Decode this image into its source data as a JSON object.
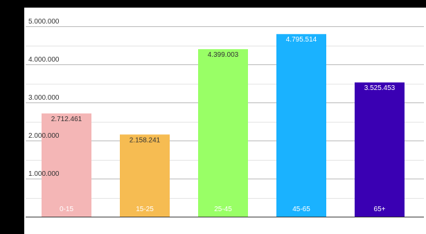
{
  "chart_data": {
    "type": "bar",
    "categories": [
      "0-15",
      "15-25",
      "25-45",
      "45-65",
      "65+"
    ],
    "values": [
      2712461,
      2158241,
      4399003,
      4795514,
      3525453
    ],
    "value_labels": [
      "2.712.461",
      "2.158.241",
      "4.399.003",
      "4.795.514",
      "3.525.453"
    ],
    "bar_colors": [
      "#f4b6b6",
      "#f6bc52",
      "#99ff66",
      "#1ab2ff",
      "#3a00b3"
    ],
    "data_label_colors": [
      "#333333",
      "#333333",
      "#333333",
      "#ffffff",
      "#ffffff"
    ],
    "category_label_color": "#ffffff",
    "y_ticks": [
      1000000,
      2000000,
      3000000,
      4000000,
      5000000
    ],
    "y_tick_labels": [
      "1.000.000",
      "2.000.000",
      "3.000.000",
      "4.000.000",
      "5.000.000"
    ],
    "ylim": [
      0,
      5000000
    ],
    "grid": true,
    "title": "",
    "xlabel": "",
    "ylabel": ""
  }
}
